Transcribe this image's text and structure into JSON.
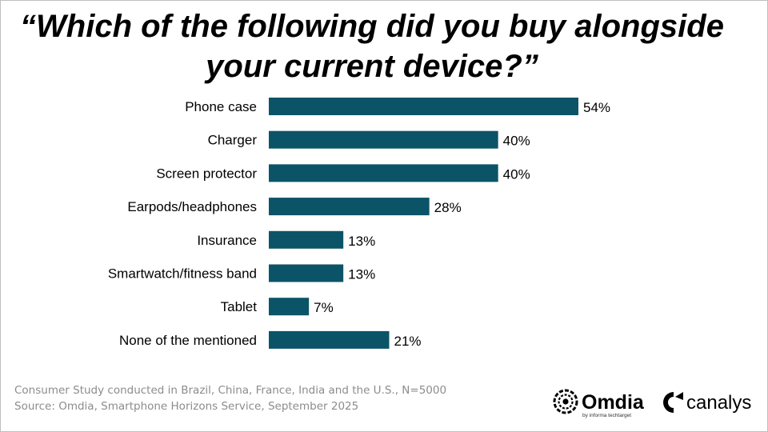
{
  "chart_data": {
    "type": "bar",
    "orientation": "horizontal",
    "title": "“Which of the following did you buy alongside your current device?”",
    "categories": [
      "Phone case",
      "Charger",
      "Screen protector",
      "Earpods/headphones",
      "Insurance",
      "Smartwatch/fitness band",
      "Tablet",
      "None of the mentioned"
    ],
    "values": [
      54,
      40,
      40,
      28,
      13,
      13,
      7,
      21
    ],
    "data_labels": [
      "54%",
      "40%",
      "40%",
      "28%",
      "13%",
      "13%",
      "7%",
      "21%"
    ],
    "xlabel": "",
    "ylabel": "",
    "xlim": [
      0,
      60
    ],
    "grid": false,
    "bar_color": "#0b5467"
  },
  "footnotes": {
    "line1": "Consumer Study conducted in Brazil, China, France, India and the U.S., N=5000",
    "line2": "Source: Omdia, Smartphone Horizons Service, September 2025"
  },
  "logos": {
    "omdia_name": "Omdia",
    "omdia_tagline": "by informa techtarget",
    "omdia_icon": "omdia-ring-icon",
    "canalys_name": "canalys",
    "canalys_icon": "canalys-c-icon"
  }
}
